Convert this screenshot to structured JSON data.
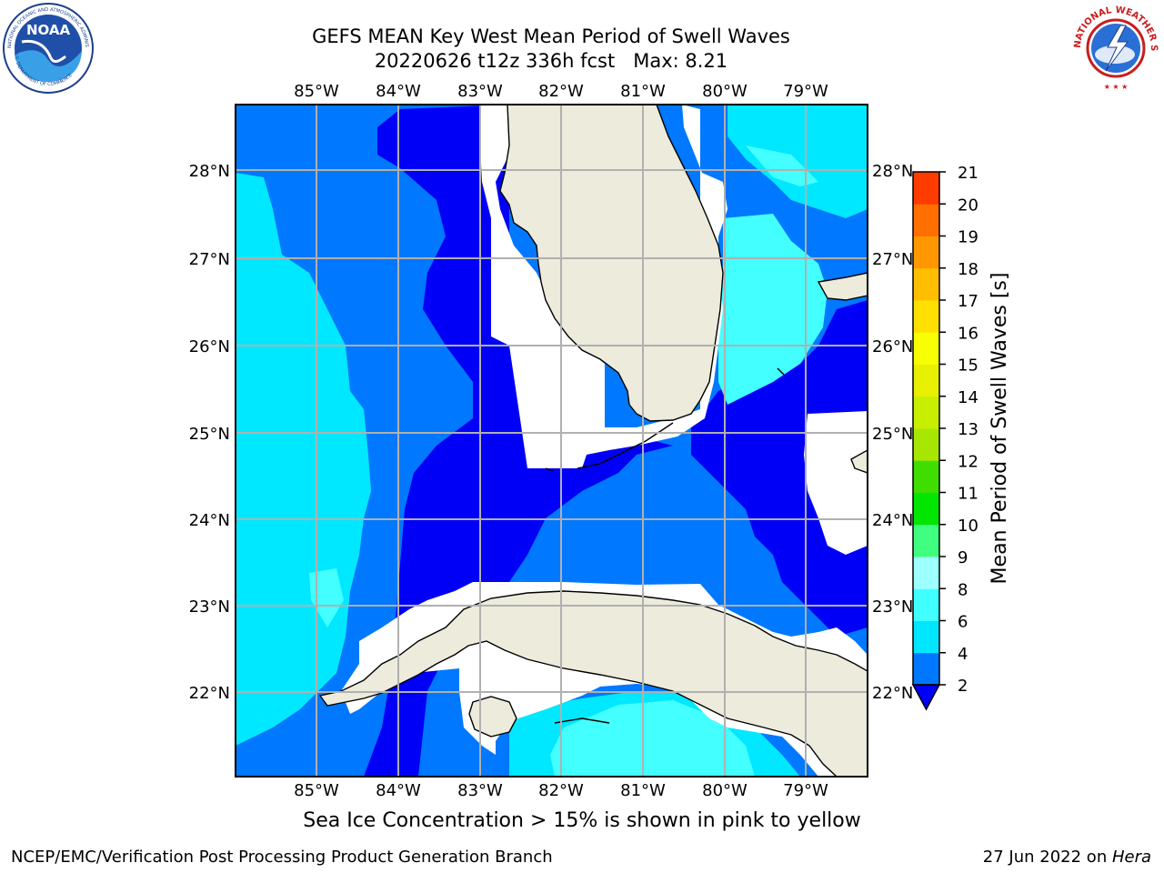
{
  "header": {
    "title_line1": "GEFS MEAN Key West Mean Period of Swell Waves",
    "title_line2": "20220626 t12z 336h fcst   Max: 8.21"
  },
  "logos": {
    "left": {
      "name": "NOAA",
      "ring_text": "NATIONAL OCEANIC AND ATMOSPHERIC ADMINISTRATION",
      "ring_text_bottom": "U.S. DEPARTMENT OF COMMERCE"
    },
    "right": {
      "name": "NATIONAL WEATHER SERVICE"
    }
  },
  "map": {
    "lon_labels": [
      "85°W",
      "84°W",
      "83°W",
      "82°W",
      "81°W",
      "80°W",
      "79°W"
    ],
    "lat_labels": [
      "28°N",
      "27°N",
      "26°N",
      "25°N",
      "24°N",
      "23°N",
      "22°N"
    ],
    "colors": {
      "land": "#ecebdc",
      "deep_blue": "#0000f6",
      "mid_blue": "#0078ff",
      "cyan": "#00e8ff",
      "light_cyan": "#44ffff",
      "grid": "#b0b0b0"
    }
  },
  "colorbar": {
    "label": "Mean Period of Swell Waves [s]",
    "ticks": [
      "2",
      "4",
      "6",
      "8",
      "9",
      "10",
      "11",
      "12",
      "13",
      "14",
      "15",
      "16",
      "17",
      "18",
      "19",
      "20",
      "21"
    ],
    "colors": [
      "#0077ff",
      "#00e6ff",
      "#40ffff",
      "#9effff",
      "#40ff80",
      "#00e600",
      "#40dd00",
      "#a6e600",
      "#c8ef00",
      "#e6f000",
      "#f7ff00",
      "#ffe000",
      "#ffbf00",
      "#ff9800",
      "#ff7000",
      "#ff3c00"
    ],
    "under_color": "#0000f6"
  },
  "notes": {
    "sea_ice": "Sea Ice Concentration > 15% is shown in pink to yellow"
  },
  "footer": {
    "left": "NCEP/EMC/Verification Post Processing Product Generation Branch",
    "right_date": "27 Jun 2022 on ",
    "right_host": "Hera"
  }
}
